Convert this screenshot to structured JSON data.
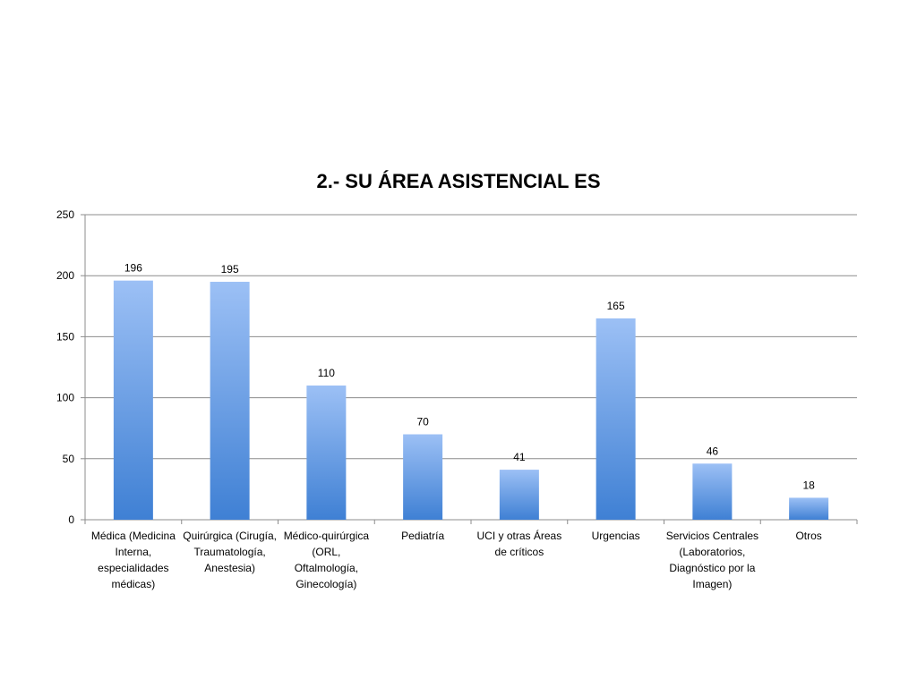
{
  "chart_data": {
    "type": "bar",
    "title": "2.- SU ÁREA ASISTENCIAL ES",
    "xlabel": "",
    "ylabel": "",
    "categories": [
      "Médica (Medicina Interna, especialidades médicas)",
      "Quirúrgica (Cirugía, Traumatología, Anestesia)",
      "Médico-quirúrgica (ORL, Oftalmología, Ginecología)",
      "Pediatría",
      "UCI y otras Áreas de críticos",
      "Urgencias",
      "Servicios Centrales (Laboratorios, Diagnóstico por la Imagen)",
      "Otros"
    ],
    "values": [
      196,
      195,
      110,
      70,
      41,
      165,
      46,
      18
    ],
    "ylim": [
      0,
      250
    ],
    "yticks": [
      0,
      50,
      100,
      150,
      200,
      250
    ],
    "grid": true,
    "legend": "none",
    "bar_color_top": "#9cc0f5",
    "bar_color_bottom": "#3f80d4"
  }
}
